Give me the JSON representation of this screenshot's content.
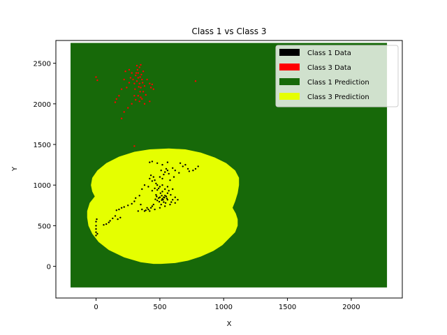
{
  "chart_data": {
    "type": "scatter",
    "title": "Class 1 vs Class 3",
    "xlabel": "X",
    "ylabel": "Y",
    "xlim": [
      -315,
      2400
    ],
    "ylim": [
      -390,
      2780
    ],
    "xticks": [
      0,
      500,
      1000,
      1500,
      2000
    ],
    "yticks": [
      0,
      500,
      1000,
      1500,
      2000,
      2500
    ],
    "legend_position": "top-right",
    "grid": false,
    "colors": {
      "class1_data": "#000000",
      "class3_data": "#ff0000",
      "class1_prediction": "#176909",
      "class3_prediction": "#e5ff00"
    },
    "legend": [
      {
        "label": "Class 1 Data",
        "color": "#000000"
      },
      {
        "label": "Class 3 Data",
        "color": "#ff0000"
      },
      {
        "label": "Class 1 Prediction",
        "color": "#176909"
      },
      {
        "label": "Class 3 Prediction",
        "color": "#e5ff00"
      }
    ],
    "prediction_grid": {
      "x_range": [
        -200,
        2280
      ],
      "y_range": [
        -260,
        2750
      ]
    },
    "class3_prediction_region": [
      [
        510,
        30
      ],
      [
        620,
        40
      ],
      [
        720,
        70
      ],
      [
        820,
        120
      ],
      [
        920,
        190
      ],
      [
        990,
        260
      ],
      [
        1040,
        340
      ],
      [
        1090,
        420
      ],
      [
        1110,
        500
      ],
      [
        1110,
        580
      ],
      [
        1095,
        650
      ],
      [
        1070,
        720
      ],
      [
        1090,
        800
      ],
      [
        1110,
        900
      ],
      [
        1120,
        1000
      ],
      [
        1120,
        1090
      ],
      [
        1090,
        1180
      ],
      [
        1020,
        1270
      ],
      [
        930,
        1340
      ],
      [
        820,
        1400
      ],
      [
        700,
        1440
      ],
      [
        570,
        1450
      ],
      [
        420,
        1440
      ],
      [
        300,
        1410
      ],
      [
        180,
        1350
      ],
      [
        80,
        1270
      ],
      [
        10,
        1180
      ],
      [
        -30,
        1090
      ],
      [
        -40,
        1000
      ],
      [
        -30,
        920
      ],
      [
        -10,
        860
      ],
      [
        -50,
        780
      ],
      [
        -70,
        680
      ],
      [
        -70,
        600
      ],
      [
        -60,
        500
      ],
      [
        -30,
        400
      ],
      [
        20,
        300
      ],
      [
        100,
        200
      ],
      [
        220,
        110
      ],
      [
        350,
        50
      ],
      [
        450,
        30
      ]
    ],
    "series": [
      {
        "name": "Class 1 Data",
        "points": [
          [
            500,
            850
          ],
          [
            520,
            830
          ],
          [
            540,
            870
          ],
          [
            480,
            810
          ],
          [
            560,
            900
          ],
          [
            510,
            760
          ],
          [
            470,
            880
          ],
          [
            530,
            790
          ],
          [
            550,
            860
          ],
          [
            490,
            840
          ],
          [
            505,
            900
          ],
          [
            525,
            820
          ],
          [
            545,
            780
          ],
          [
            475,
            860
          ],
          [
            515,
            870
          ],
          [
            535,
            845
          ],
          [
            495,
            795
          ],
          [
            555,
            835
          ],
          [
            465,
            825
          ],
          [
            585,
            880
          ],
          [
            450,
            760
          ],
          [
            430,
            720
          ],
          [
            410,
            700
          ],
          [
            390,
            690
          ],
          [
            420,
            680
          ],
          [
            440,
            740
          ],
          [
            460,
            700
          ],
          [
            380,
            680
          ],
          [
            400,
            720
          ],
          [
            600,
            820
          ],
          [
            620,
            850
          ],
          [
            590,
            790
          ],
          [
            570,
            930
          ],
          [
            540,
            950
          ],
          [
            600,
            950
          ],
          [
            560,
            980
          ],
          [
            480,
            940
          ],
          [
            460,
            960
          ],
          [
            440,
            930
          ],
          [
            520,
            920
          ],
          [
            440,
            1050
          ],
          [
            460,
            1060
          ],
          [
            480,
            1000
          ],
          [
            430,
            1120
          ],
          [
            500,
            1100
          ],
          [
            520,
            1080
          ],
          [
            540,
            1160
          ],
          [
            560,
            1180
          ],
          [
            530,
            1130
          ],
          [
            550,
            1200
          ],
          [
            570,
            1140
          ],
          [
            510,
            1180
          ],
          [
            420,
            1280
          ],
          [
            440,
            1290
          ],
          [
            480,
            1270
          ],
          [
            520,
            1250
          ],
          [
            560,
            1280
          ],
          [
            600,
            1210
          ],
          [
            620,
            1180
          ],
          [
            650,
            1150
          ],
          [
            700,
            1250
          ],
          [
            720,
            1200
          ],
          [
            760,
            1180
          ],
          [
            800,
            1230
          ],
          [
            780,
            1200
          ],
          [
            730,
            1170
          ],
          [
            680,
            1230
          ],
          [
            660,
            1270
          ],
          [
            450,
            1100
          ],
          [
            420,
            1080
          ],
          [
            380,
            1000
          ],
          [
            360,
            950
          ],
          [
            340,
            870
          ],
          [
            310,
            840
          ],
          [
            300,
            800
          ],
          [
            280,
            770
          ],
          [
            250,
            750
          ],
          [
            220,
            730
          ],
          [
            200,
            720
          ],
          [
            180,
            700
          ],
          [
            160,
            690
          ],
          [
            150,
            620
          ],
          [
            130,
            590
          ],
          [
            110,
            560
          ],
          [
            100,
            540
          ],
          [
            80,
            520
          ],
          [
            60,
            510
          ],
          [
            170,
            580
          ],
          [
            190,
            600
          ],
          [
            0,
            380
          ],
          [
            0,
            420
          ],
          [
            0,
            460
          ],
          [
            0,
            500
          ],
          [
            0,
            550
          ],
          [
            5,
            580
          ],
          [
            10,
            400
          ],
          [
            520,
            1000
          ],
          [
            500,
            980
          ],
          [
            580,
            1060
          ],
          [
            610,
            1100
          ],
          [
            470,
            1020
          ],
          [
            490,
            960
          ],
          [
            410,
            980
          ],
          [
            350,
            760
          ],
          [
            360,
            700
          ],
          [
            330,
            680
          ],
          [
            500,
            720
          ],
          [
            540,
            740
          ],
          [
            580,
            760
          ],
          [
            620,
            780
          ],
          [
            640,
            820
          ],
          [
            560,
            820
          ],
          [
            530,
            850
          ],
          [
            515,
            815
          ]
        ]
      },
      {
        "name": "Class 3 Data",
        "points": [
          [
            320,
            2280
          ],
          [
            340,
            2250
          ],
          [
            330,
            2320
          ],
          [
            350,
            2200
          ],
          [
            310,
            2350
          ],
          [
            360,
            2300
          ],
          [
            300,
            2250
          ],
          [
            345,
            2150
          ],
          [
            325,
            2420
          ],
          [
            315,
            2380
          ],
          [
            355,
            2360
          ],
          [
            335,
            2210
          ],
          [
            305,
            2180
          ],
          [
            365,
            2260
          ],
          [
            290,
            2300
          ],
          [
            340,
            2450
          ],
          [
            320,
            2470
          ],
          [
            330,
            2100
          ],
          [
            350,
            2080
          ],
          [
            370,
            2150
          ],
          [
            380,
            2220
          ],
          [
            280,
            2380
          ],
          [
            270,
            2320
          ],
          [
            260,
            2260
          ],
          [
            300,
            2100
          ],
          [
            310,
            2050
          ],
          [
            340,
            2030
          ],
          [
            360,
            2060
          ],
          [
            390,
            2110
          ],
          [
            400,
            2300
          ],
          [
            420,
            2250
          ],
          [
            430,
            2200
          ],
          [
            240,
            2200
          ],
          [
            220,
            2300
          ],
          [
            200,
            2180
          ],
          [
            180,
            2100
          ],
          [
            160,
            2060
          ],
          [
            150,
            2020
          ],
          [
            200,
            1820
          ],
          [
            220,
            1900
          ],
          [
            250,
            1950
          ],
          [
            280,
            2000
          ],
          [
            380,
            2000
          ],
          [
            420,
            2030
          ],
          [
            440,
            2240
          ],
          [
            450,
            2180
          ],
          [
            0,
            2330
          ],
          [
            10,
            2290
          ],
          [
            780,
            2280
          ],
          [
            300,
            1480
          ],
          [
            230,
            2400
          ],
          [
            260,
            2420
          ],
          [
            350,
            2480
          ],
          [
            370,
            2400
          ],
          [
            330,
            2380
          ],
          [
            345,
            2330
          ]
        ]
      }
    ]
  }
}
